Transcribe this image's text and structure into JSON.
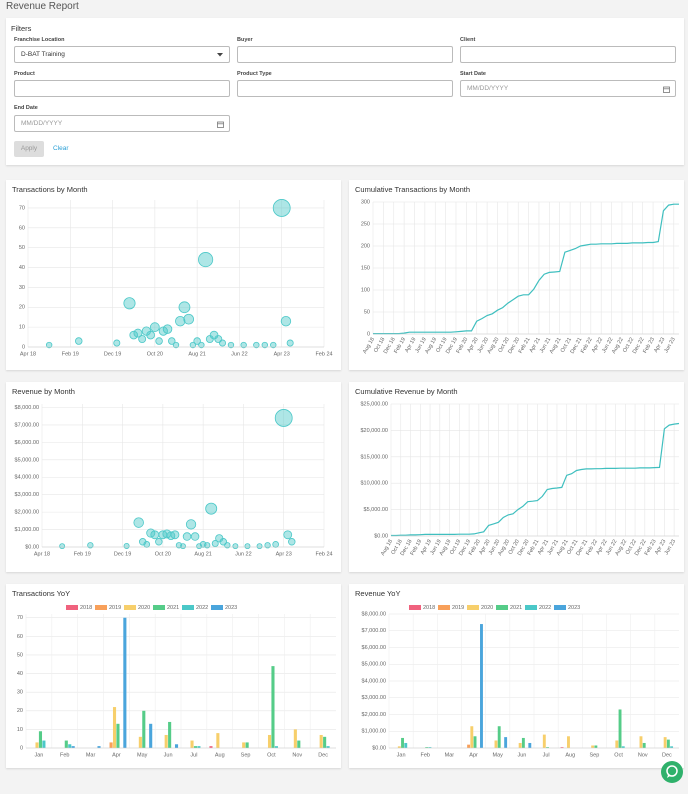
{
  "header": {
    "title": "Revenue Report"
  },
  "filters": {
    "title": "Filters",
    "fields": [
      {
        "label": "Franchise Location",
        "value": "D-BAT Training"
      },
      {
        "label": "Buyer"
      },
      {
        "label": "Client"
      },
      {
        "label": "Product"
      },
      {
        "label": "Product Type"
      },
      {
        "label": "Start Date",
        "placeholder": "MM/DD/YYYY"
      },
      {
        "label": "End Date",
        "placeholder": "MM/DD/YYYY"
      }
    ],
    "buttons": [
      "Apply",
      "Clear"
    ]
  },
  "chart_data": [
    {
      "type": "scatter",
      "title": "Transactions by Month",
      "x": [
        "Sep 18",
        "Apr 19",
        "Jan 20",
        "Apr 20",
        "May 20",
        "Jun 20",
        "Jul 20",
        "Aug 20",
        "Sep 20",
        "Oct 20",
        "Nov 20",
        "Dec 20",
        "Jan 21",
        "Feb 21",
        "Mar 21",
        "Apr 21",
        "May 21",
        "Jun 21",
        "Jul 21",
        "Aug 21",
        "Sep 21",
        "Oct 21",
        "Nov 21",
        "Dec 21",
        "Jan 22",
        "Feb 22",
        "Apr 22",
        "Jul 22",
        "Oct 22",
        "Dec 22",
        "Feb 23",
        "Apr 23",
        "May 23",
        "Jun 23"
      ],
      "values": [
        1,
        3,
        2,
        22,
        6,
        7,
        4,
        8,
        6,
        10,
        3,
        8,
        9,
        3,
        1,
        13,
        20,
        14,
        1,
        3,
        1,
        44,
        4,
        6,
        4,
        2,
        1,
        1,
        1,
        1,
        1,
        70,
        13,
        2
      ],
      "color": "#4bc8c8",
      "xlim": [
        "Apr 18",
        "Feb 24"
      ],
      "xticks": [
        "Apr 18",
        "Feb 19",
        "Dec 19",
        "Oct 20",
        "Aug 21",
        "Jun 22",
        "Apr 23",
        "Feb 24"
      ],
      "ylim": [
        0,
        74
      ],
      "yticks": [
        0,
        10,
        20,
        30,
        40,
        50,
        60,
        70
      ],
      "grid": true
    },
    {
      "type": "line",
      "title": "Cumulative Transactions by Month",
      "categories": [
        "Aug 18",
        null,
        "Oct 18",
        null,
        "Dec 18",
        null,
        "Feb 19",
        null,
        "Apr 19",
        null,
        "Jun 19",
        null,
        "Aug 19",
        null,
        "Oct 19",
        null,
        "Dec 19",
        null,
        "Feb 20",
        null,
        "Apr 20",
        null,
        "Jun 20",
        null,
        "Aug 20",
        null,
        "Oct 20",
        null,
        "Dec 20",
        null,
        "Feb 21",
        null,
        "Apr 21",
        null,
        "Jun 21",
        null,
        "Aug 21",
        null,
        "Oct 21",
        null,
        "Dec 21",
        null,
        "Feb 22",
        null,
        "Apr 22",
        null,
        "Jun 22",
        null,
        "Aug 22",
        null,
        "Oct 22",
        null,
        "Dec 22",
        null,
        "Feb 23",
        null,
        "Apr 23",
        null,
        "Jun 23",
        null
      ],
      "values": [
        1,
        1,
        1,
        1,
        1,
        1,
        2,
        4,
        4,
        4,
        4,
        4,
        4,
        4,
        4,
        4,
        5,
        6,
        7,
        7,
        29,
        35,
        42,
        46,
        54,
        60,
        70,
        78,
        86,
        89,
        89,
        102,
        122,
        136,
        140,
        141,
        142,
        186,
        190,
        194,
        200,
        202,
        204,
        204,
        205,
        205,
        205,
        206,
        206,
        206,
        207,
        207,
        207,
        208,
        208,
        210,
        280,
        293,
        295,
        295
      ],
      "color": "#3fbfbf",
      "ylim": [
        0,
        300
      ],
      "yticks": [
        0,
        50,
        100,
        150,
        200,
        250,
        300
      ],
      "grid": true
    },
    {
      "type": "scatter",
      "title": "Revenue by Month",
      "x": [
        "Sep 18",
        "Apr 19",
        "Jan 20",
        "Apr 20",
        "May 20",
        "Jun 20",
        "Jul 20",
        "Aug 20",
        "Sep 20",
        "Oct 20",
        "Nov 20",
        "Dec 20",
        "Jan 21",
        "Feb 21",
        "Mar 21",
        "Apr 21",
        "May 21",
        "Jun 21",
        "Jul 21",
        "Aug 21",
        "Sep 21",
        "Oct 21",
        "Nov 21",
        "Dec 21",
        "Jan 22",
        "Feb 22",
        "Apr 22",
        "Jul 22",
        "Oct 22",
        "Dec 22",
        "Feb 23",
        "Apr 23",
        "May 23",
        "Jun 23"
      ],
      "values": [
        50,
        100,
        60,
        1400,
        300,
        150,
        800,
        700,
        300,
        700,
        750,
        650,
        700,
        100,
        50,
        600,
        1300,
        600,
        50,
        150,
        100,
        2200,
        200,
        500,
        300,
        100,
        50,
        50,
        50,
        100,
        150,
        7400,
        700,
        300
      ],
      "color": "#4bc8c8",
      "xlim": [
        "Apr 18",
        "Feb 24"
      ],
      "xticks": [
        "Apr 18",
        "Feb 19",
        "Dec 19",
        "Oct 20",
        "Aug 21",
        "Jun 22",
        "Apr 23",
        "Feb 24"
      ],
      "ylim": [
        0,
        8200
      ],
      "yticks": [
        {
          "value": 0,
          "label": "$0.00"
        },
        {
          "value": 1000,
          "label": "$1,000.00"
        },
        {
          "value": 2000,
          "label": "$2,000.00"
        },
        {
          "value": 3000,
          "label": "$3,000.00"
        },
        {
          "value": 4000,
          "label": "$4,000.00"
        },
        {
          "value": 5000,
          "label": "$5,000.00"
        },
        {
          "value": 6000,
          "label": "$6,000.00"
        },
        {
          "value": 7000,
          "label": "$7,000.00"
        },
        {
          "value": 8000,
          "label": "$8,000.00"
        }
      ],
      "grid": true
    },
    {
      "type": "line",
      "title": "Cumulative Revenue by Month",
      "categories": [
        "Aug 18",
        null,
        "Oct 18",
        null,
        "Dec 18",
        null,
        "Feb 19",
        null,
        "Apr 19",
        null,
        "Jun 19",
        null,
        "Aug 19",
        null,
        "Oct 19",
        null,
        "Dec 19",
        null,
        "Feb 20",
        null,
        "Apr 20",
        null,
        "Jun 20",
        null,
        "Aug 20",
        null,
        "Oct 20",
        null,
        "Dec 20",
        null,
        "Feb 21",
        null,
        "Apr 21",
        null,
        "Jun 21",
        null,
        "Aug 21",
        null,
        "Oct 21",
        null,
        "Dec 21",
        null,
        "Feb 22",
        null,
        "Apr 22",
        null,
        "Jun 22",
        null,
        "Aug 22",
        null,
        "Oct 22",
        null,
        "Dec 22",
        null,
        "Feb 23",
        null,
        "Apr 23",
        null,
        "Jun 23",
        null
      ],
      "values": [
        100,
        100,
        150,
        150,
        200,
        200,
        250,
        300,
        300,
        300,
        300,
        300,
        300,
        300,
        350,
        350,
        350,
        400,
        600,
        800,
        2000,
        2300,
        2600,
        3500,
        4000,
        4200,
        5000,
        5600,
        6500,
        6600,
        6700,
        7500,
        8800,
        9000,
        9100,
        9200,
        11500,
        11800,
        12400,
        12600,
        12700,
        12700,
        12750,
        12750,
        12800,
        12800,
        12800,
        12850,
        12850,
        12850,
        12850,
        12900,
        12900,
        12900,
        12950,
        13000,
        20300,
        21000,
        21200,
        21300
      ],
      "color": "#3fbfbf",
      "ylim": [
        0,
        25000
      ],
      "yticks": [
        {
          "value": 0,
          "label": "$0.00"
        },
        {
          "value": 5000,
          "label": "$5,000.00"
        },
        {
          "value": 10000,
          "label": "$10,000.00"
        },
        {
          "value": 15000,
          "label": "$15,000.00"
        },
        {
          "value": 20000,
          "label": "$20,000.00"
        },
        {
          "value": 25000,
          "label": "$25,000.00"
        }
      ],
      "grid": true
    },
    {
      "type": "bar",
      "title": "Transactions YoY",
      "categories": [
        "Jan",
        "Feb",
        "Mar",
        "Apr",
        "May",
        "Jun",
        "Jul",
        "Aug",
        "Sep",
        "Oct",
        "Nov",
        "Dec"
      ],
      "series": [
        {
          "name": "2018",
          "color": "#f0627e",
          "values": [
            0,
            0,
            0,
            0,
            0,
            0,
            0,
            1,
            0,
            0,
            0,
            0
          ]
        },
        {
          "name": "2019",
          "color": "#f8a05a",
          "values": [
            0,
            0,
            0,
            3,
            0,
            0,
            0,
            0,
            0,
            0,
            0,
            0
          ]
        },
        {
          "name": "2020",
          "color": "#f7cf6b",
          "values": [
            3,
            0,
            0,
            22,
            6,
            7,
            4,
            8,
            3,
            7,
            10,
            7
          ]
        },
        {
          "name": "2021",
          "color": "#55cc88",
          "values": [
            9,
            4,
            0,
            13,
            20,
            14,
            1,
            0,
            3,
            44,
            4,
            6
          ]
        },
        {
          "name": "2022",
          "color": "#4bc8c8",
          "values": [
            4,
            2,
            0,
            0,
            0,
            0,
            1,
            0,
            0,
            1,
            0,
            1
          ]
        },
        {
          "name": "2023",
          "color": "#4aa5dc",
          "values": [
            0,
            1,
            1,
            70,
            13,
            2,
            0,
            0,
            0,
            0,
            0,
            0
          ]
        }
      ],
      "legend": "top",
      "ylim": [
        0,
        72
      ],
      "yticks": [
        0,
        10,
        20,
        30,
        40,
        50,
        60,
        70
      ],
      "grid": true
    },
    {
      "type": "bar",
      "title": "Revenue YoY",
      "categories": [
        "Jan",
        "Feb",
        "Mar",
        "Apr",
        "May",
        "Jun",
        "Jul",
        "Aug",
        "Sep",
        "Oct",
        "Nov",
        "Dec"
      ],
      "series": [
        {
          "name": "2018",
          "color": "#f0627e",
          "values": [
            0,
            0,
            0,
            0,
            0,
            0,
            0,
            50,
            0,
            0,
            0,
            0
          ]
        },
        {
          "name": "2019",
          "color": "#f8a05a",
          "values": [
            0,
            0,
            0,
            200,
            0,
            0,
            0,
            0,
            0,
            0,
            0,
            0
          ]
        },
        {
          "name": "2020",
          "color": "#f7cf6b",
          "values": [
            100,
            0,
            0,
            1300,
            450,
            300,
            800,
            700,
            150,
            450,
            700,
            650
          ]
        },
        {
          "name": "2021",
          "color": "#55cc88",
          "values": [
            600,
            50,
            0,
            700,
            1300,
            600,
            50,
            0,
            150,
            2300,
            300,
            500
          ]
        },
        {
          "name": "2022",
          "color": "#4bc8c8",
          "values": [
            300,
            50,
            0,
            0,
            0,
            0,
            0,
            0,
            0,
            100,
            0,
            100
          ]
        },
        {
          "name": "2023",
          "color": "#4aa5dc",
          "values": [
            0,
            0,
            0,
            7400,
            650,
            300,
            0,
            0,
            0,
            0,
            0,
            0
          ]
        }
      ],
      "legend": "top",
      "ylim": [
        0,
        8000
      ],
      "yticks": [
        {
          "value": 0,
          "label": "$0.00"
        },
        {
          "value": 1000,
          "label": "$1,000.00"
        },
        {
          "value": 2000,
          "label": "$2,000.00"
        },
        {
          "value": 3000,
          "label": "$3,000.00"
        },
        {
          "value": 4000,
          "label": "$4,000.00"
        },
        {
          "value": 5000,
          "label": "$5,000.00"
        },
        {
          "value": 6000,
          "label": "$6,000.00"
        },
        {
          "value": 7000,
          "label": "$7,000.00"
        },
        {
          "value": 8000,
          "label": "$8,000.00"
        }
      ],
      "grid": true
    }
  ]
}
